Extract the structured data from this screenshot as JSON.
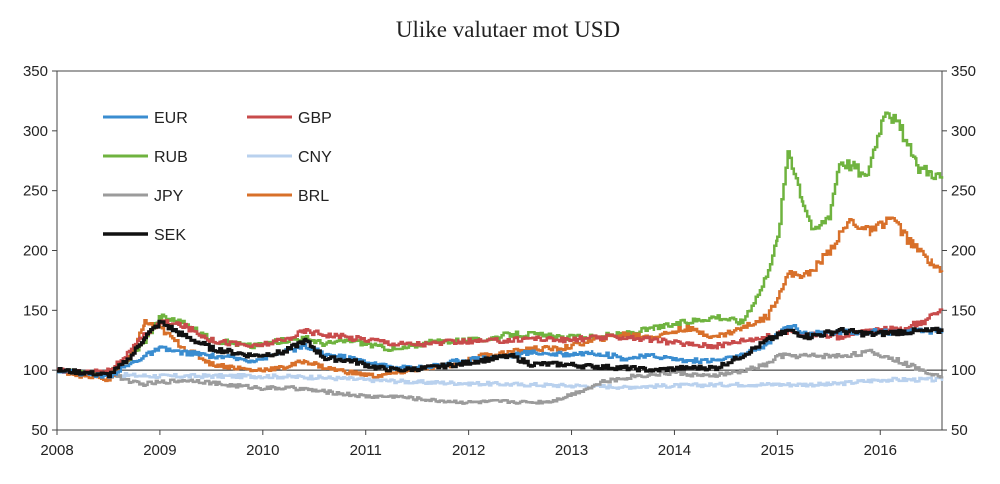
{
  "chart_data": {
    "type": "line",
    "title": "Ulike valutaer mot USD",
    "xlabel": "",
    "ylabel": "",
    "xlim": [
      2008.0,
      2016.6
    ],
    "ylim": [
      50,
      350
    ],
    "x_ticks": [
      "2008",
      "2009",
      "2010",
      "2011",
      "2012",
      "2013",
      "2014",
      "2015",
      "2016"
    ],
    "y_ticks": [
      "50",
      "100",
      "150",
      "200",
      "250",
      "300",
      "350"
    ],
    "reference_line": 100,
    "grid": false,
    "legend_position": "top-left",
    "series": [
      {
        "name": "EUR",
        "color": "#3a8dd0",
        "x": [
          2008.0,
          2008.25,
          2008.5,
          2008.7,
          2008.85,
          2009.0,
          2009.2,
          2009.5,
          2009.9,
          2010.2,
          2010.4,
          2010.6,
          2010.85,
          2011.1,
          2011.3,
          2011.6,
          2011.9,
          2012.1,
          2012.4,
          2012.6,
          2012.9,
          2013.2,
          2013.5,
          2013.8,
          2014.1,
          2014.4,
          2014.65,
          2014.9,
          2015.1,
          2015.3,
          2015.6,
          2015.9,
          2016.2,
          2016.6
        ],
        "y": [
          100,
          97,
          95,
          105,
          112,
          118,
          115,
          112,
          108,
          115,
          120,
          113,
          110,
          105,
          102,
          103,
          108,
          110,
          112,
          115,
          113,
          115,
          110,
          112,
          108,
          108,
          112,
          122,
          138,
          130,
          132,
          132,
          132,
          133
        ]
      },
      {
        "name": "GBP",
        "color": "#c84b4b",
        "x": [
          2008.0,
          2008.25,
          2008.5,
          2008.7,
          2008.85,
          2009.0,
          2009.2,
          2009.5,
          2009.9,
          2010.2,
          2010.4,
          2010.6,
          2010.85,
          2011.1,
          2011.3,
          2011.6,
          2011.9,
          2012.1,
          2012.4,
          2012.6,
          2012.9,
          2013.2,
          2013.5,
          2013.8,
          2014.1,
          2014.4,
          2014.65,
          2014.9,
          2015.1,
          2015.3,
          2015.6,
          2015.9,
          2016.2,
          2016.4,
          2016.6
        ],
        "y": [
          100,
          98,
          100,
          115,
          130,
          140,
          138,
          125,
          120,
          125,
          133,
          130,
          127,
          125,
          122,
          122,
          124,
          124,
          125,
          127,
          125,
          127,
          128,
          125,
          122,
          120,
          125,
          128,
          133,
          130,
          128,
          133,
          135,
          140,
          150
        ]
      },
      {
        "name": "RUB",
        "color": "#6fb33f",
        "x": [
          2008.0,
          2008.25,
          2008.5,
          2008.7,
          2008.85,
          2009.0,
          2009.2,
          2009.5,
          2009.9,
          2010.2,
          2010.4,
          2010.6,
          2010.85,
          2011.1,
          2011.3,
          2011.6,
          2011.9,
          2012.1,
          2012.4,
          2012.6,
          2012.9,
          2013.2,
          2013.5,
          2013.8,
          2014.1,
          2014.4,
          2014.65,
          2014.85,
          2015.0,
          2015.1,
          2015.25,
          2015.35,
          2015.5,
          2015.6,
          2015.75,
          2015.85,
          2016.05,
          2016.2,
          2016.35,
          2016.5,
          2016.6
        ],
        "y": [
          100,
          97,
          98,
          110,
          125,
          145,
          140,
          125,
          120,
          125,
          127,
          122,
          125,
          120,
          117,
          123,
          125,
          125,
          130,
          130,
          127,
          128,
          130,
          135,
          140,
          145,
          140,
          170,
          210,
          285,
          240,
          215,
          230,
          275,
          270,
          260,
          320,
          300,
          270,
          265,
          260
        ]
      },
      {
        "name": "CNY",
        "color": "#b9d1ee",
        "x": [
          2008.0,
          2008.5,
          2009.0,
          2009.5,
          2010.0,
          2010.5,
          2011.0,
          2011.5,
          2012.0,
          2012.5,
          2013.0,
          2013.5,
          2014.0,
          2014.5,
          2015.0,
          2015.5,
          2016.0,
          2016.6
        ],
        "y": [
          100,
          96,
          95,
          95,
          95,
          94,
          92,
          90,
          89,
          88,
          87,
          86,
          87,
          88,
          88,
          88,
          92,
          92
        ]
      },
      {
        "name": "JPY",
        "color": "#9b9b9b",
        "x": [
          2008.0,
          2008.25,
          2008.5,
          2008.8,
          2009.0,
          2009.3,
          2009.6,
          2010.0,
          2010.3,
          2010.6,
          2011.0,
          2011.3,
          2011.6,
          2012.0,
          2012.3,
          2012.6,
          2012.8,
          2013.0,
          2013.3,
          2013.6,
          2014.0,
          2014.3,
          2014.6,
          2014.9,
          2015.0,
          2015.3,
          2015.6,
          2015.9,
          2016.1,
          2016.4,
          2016.6
        ],
        "y": [
          100,
          98,
          97,
          88,
          90,
          92,
          88,
          85,
          85,
          82,
          78,
          78,
          75,
          73,
          74,
          73,
          74,
          80,
          90,
          95,
          98,
          95,
          98,
          105,
          112,
          112,
          112,
          115,
          110,
          100,
          95
        ]
      },
      {
        "name": "BRL",
        "color": "#d8702a",
        "x": [
          2008.0,
          2008.25,
          2008.5,
          2008.7,
          2008.85,
          2009.0,
          2009.2,
          2009.5,
          2009.9,
          2010.2,
          2010.4,
          2010.6,
          2010.85,
          2011.1,
          2011.3,
          2011.6,
          2011.9,
          2012.1,
          2012.4,
          2012.6,
          2012.9,
          2013.2,
          2013.5,
          2013.8,
          2014.1,
          2014.4,
          2014.65,
          2014.9,
          2015.1,
          2015.3,
          2015.5,
          2015.7,
          2015.9,
          2016.1,
          2016.3,
          2016.5,
          2016.6
        ],
        "y": [
          100,
          95,
          92,
          110,
          140,
          135,
          120,
          105,
          100,
          102,
          108,
          102,
          98,
          95,
          98,
          102,
          105,
          112,
          115,
          118,
          118,
          125,
          130,
          128,
          135,
          128,
          135,
          145,
          180,
          180,
          200,
          225,
          215,
          228,
          205,
          190,
          182
        ]
      },
      {
        "name": "SEK",
        "color": "#111111",
        "x": [
          2008.0,
          2008.25,
          2008.5,
          2008.7,
          2008.85,
          2009.0,
          2009.2,
          2009.5,
          2009.9,
          2010.2,
          2010.4,
          2010.6,
          2010.85,
          2011.1,
          2011.3,
          2011.6,
          2011.9,
          2012.1,
          2012.4,
          2012.6,
          2012.9,
          2013.2,
          2013.5,
          2013.8,
          2014.1,
          2014.4,
          2014.65,
          2014.9,
          2015.1,
          2015.3,
          2015.6,
          2015.9,
          2016.2,
          2016.6
        ],
        "y": [
          100,
          98,
          96,
          110,
          128,
          140,
          130,
          118,
          112,
          115,
          125,
          110,
          108,
          102,
          100,
          102,
          105,
          108,
          112,
          105,
          105,
          103,
          102,
          100,
          102,
          102,
          112,
          125,
          133,
          128,
          133,
          130,
          132,
          133
        ]
      }
    ]
  }
}
